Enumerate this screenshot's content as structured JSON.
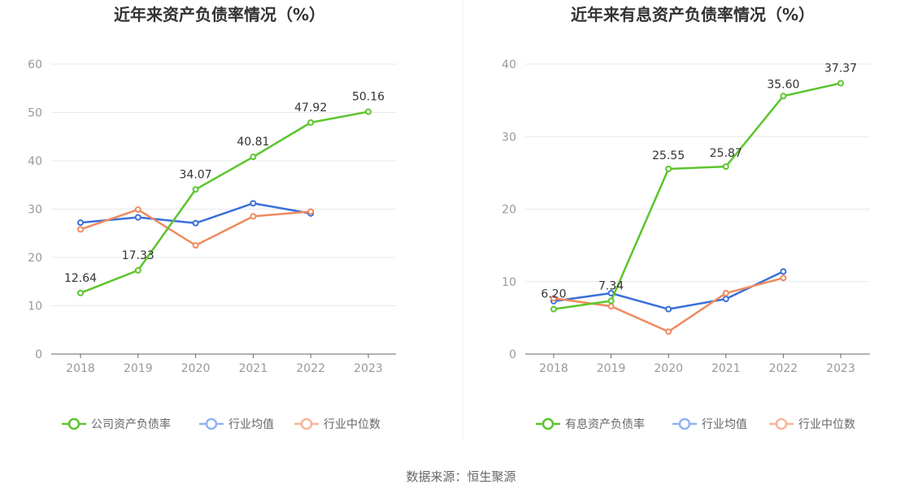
{
  "source_label": "数据来源：恒生聚源",
  "colors": {
    "company": "#5bc52d",
    "avg": "#3a6fd8",
    "median": "#f08a5d",
    "legend_avg": "#8fb3f0",
    "legend_median": "#f7b49a"
  },
  "chart_data": [
    {
      "type": "line",
      "title": "近年来资产负债率情况（%）",
      "categories": [
        "2018",
        "2019",
        "2020",
        "2021",
        "2022",
        "2023"
      ],
      "ylim": [
        0,
        60
      ],
      "yticks": [
        0,
        10,
        20,
        30,
        40,
        50,
        60
      ],
      "grid": true,
      "legend_position": "bottom",
      "series": [
        {
          "name": "公司资产负债率",
          "key": "company",
          "values": [
            12.64,
            17.33,
            34.07,
            40.81,
            47.92,
            50.16
          ],
          "labels": [
            "12.64",
            "17.33",
            "34.07",
            "40.81",
            "47.92",
            "50.16"
          ]
        },
        {
          "name": "行业均值",
          "key": "avg",
          "values": [
            27.2,
            28.3,
            27.1,
            31.2,
            29.1,
            null
          ]
        },
        {
          "name": "行业中位数",
          "key": "median",
          "values": [
            25.8,
            29.9,
            22.5,
            28.5,
            29.5,
            null
          ]
        }
      ]
    },
    {
      "type": "line",
      "title": "近年来有息资产负债率情况（%）",
      "categories": [
        "2018",
        "2019",
        "2020",
        "2021",
        "2022",
        "2023"
      ],
      "ylim": [
        0,
        40
      ],
      "yticks": [
        0,
        10,
        20,
        30,
        40
      ],
      "grid": true,
      "legend_position": "bottom",
      "series": [
        {
          "name": "有息资产负债率",
          "key": "company",
          "values": [
            6.2,
            7.34,
            25.55,
            25.87,
            35.6,
            37.37
          ],
          "labels": [
            "6.20",
            "7.34",
            "25.55",
            "25.87",
            "35.60",
            "37.37"
          ]
        },
        {
          "name": "行业均值",
          "key": "avg",
          "values": [
            7.3,
            8.4,
            6.2,
            7.6,
            11.4,
            null
          ]
        },
        {
          "name": "行业中位数",
          "key": "median",
          "values": [
            7.7,
            6.6,
            3.1,
            8.4,
            10.5,
            null
          ]
        }
      ]
    }
  ]
}
